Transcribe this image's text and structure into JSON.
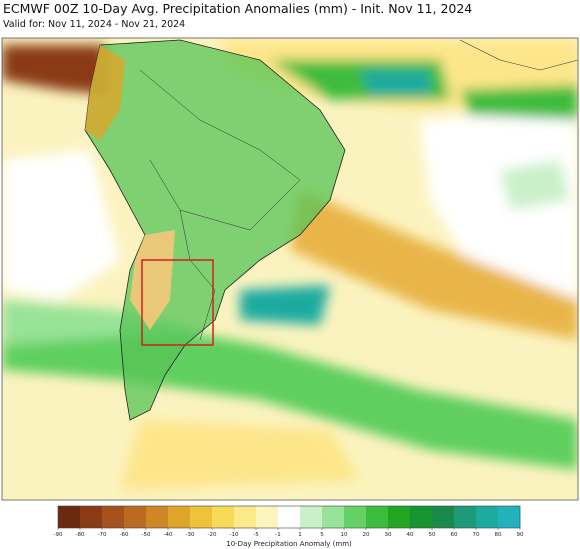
{
  "title": "ECMWF 00Z 10-Day Avg. Precipitation Anomalies (mm) - Init. Nov 11, 2024",
  "subtitle": "Valid for: Nov 11, 2024 - Nov 21, 2024",
  "colorbar": {
    "label": "10-Day Precipitation Anomaly (mm)",
    "ticks": [
      -90,
      -80,
      -70,
      -60,
      -50,
      -40,
      -30,
      -20,
      -10,
      -5,
      -1,
      1,
      5,
      10,
      20,
      30,
      40,
      50,
      60,
      70,
      80,
      90
    ],
    "colors": [
      "#6b2a0f",
      "#8a3b14",
      "#a5521e",
      "#bb6a22",
      "#cf8624",
      "#dea52a",
      "#eec33a",
      "#f6da5a",
      "#fbe98a",
      "#fdf5bf",
      "#ffffff",
      "#c9f0c9",
      "#97e397",
      "#64d164",
      "#3cbc3c",
      "#22a622",
      "#17942f",
      "#1a8a4a",
      "#1c9a7a",
      "#1faaa0",
      "#22b2bd"
    ]
  }
}
